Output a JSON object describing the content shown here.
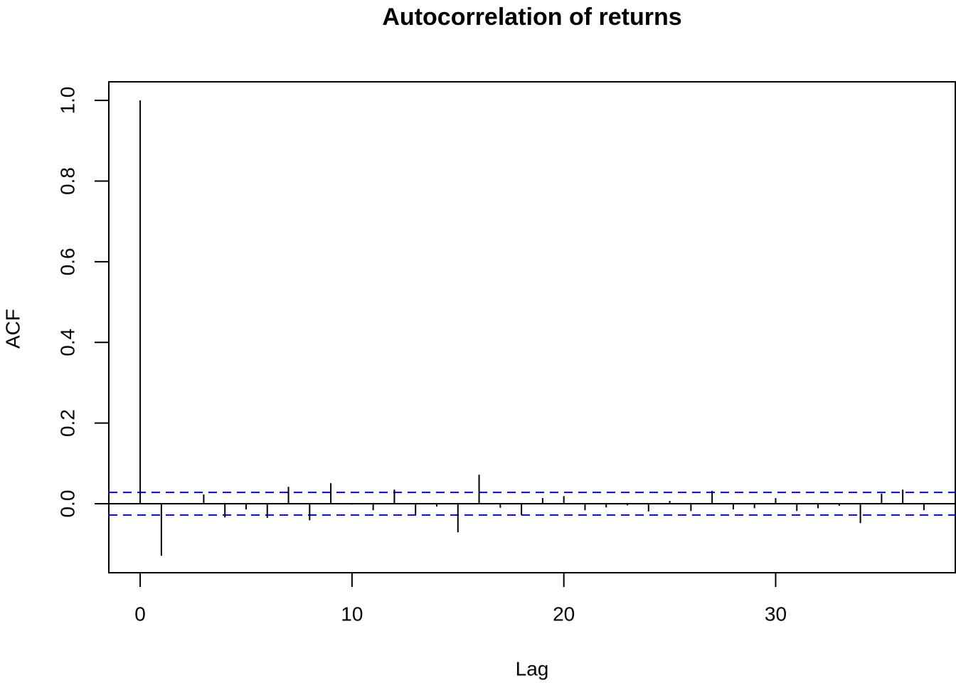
{
  "chart_data": {
    "type": "acf",
    "title": "Autocorrelation of returns",
    "x_label": "Lag",
    "y_label": "ACF",
    "x": [
      0,
      1,
      2,
      3,
      4,
      5,
      6,
      7,
      8,
      9,
      10,
      11,
      12,
      13,
      14,
      15,
      16,
      17,
      18,
      19,
      20,
      21,
      22,
      23,
      24,
      25,
      26,
      27,
      28,
      29,
      30,
      31,
      32,
      33,
      34,
      35,
      36,
      37
    ],
    "values": [
      1.0,
      -0.129,
      0.002,
      0.023,
      -0.034,
      -0.014,
      -0.035,
      0.042,
      -0.041,
      0.051,
      -0.002,
      -0.016,
      0.035,
      -0.028,
      -0.007,
      -0.071,
      0.072,
      -0.01,
      -0.028,
      0.014,
      0.019,
      -0.016,
      -0.009,
      -0.004,
      -0.019,
      0.007,
      -0.018,
      0.032,
      -0.014,
      -0.011,
      0.014,
      -0.018,
      -0.011,
      -0.005,
      -0.048,
      0.025,
      0.035,
      -0.016
    ],
    "color": "#000000",
    "conf_limits": [
      0.028,
      -0.028
    ],
    "conf_color": "#0000ff",
    "xlim": [
      -1.48,
      38.48
    ],
    "xticks": [
      0,
      10,
      20,
      30
    ],
    "ylim": [
      -0.171,
      1.046
    ],
    "yticks": [
      {
        "value": 0,
        "label": "0.0"
      },
      0.2,
      0.4,
      0.6,
      0.8,
      {
        "value": 1,
        "label": "1.0"
      }
    ]
  }
}
